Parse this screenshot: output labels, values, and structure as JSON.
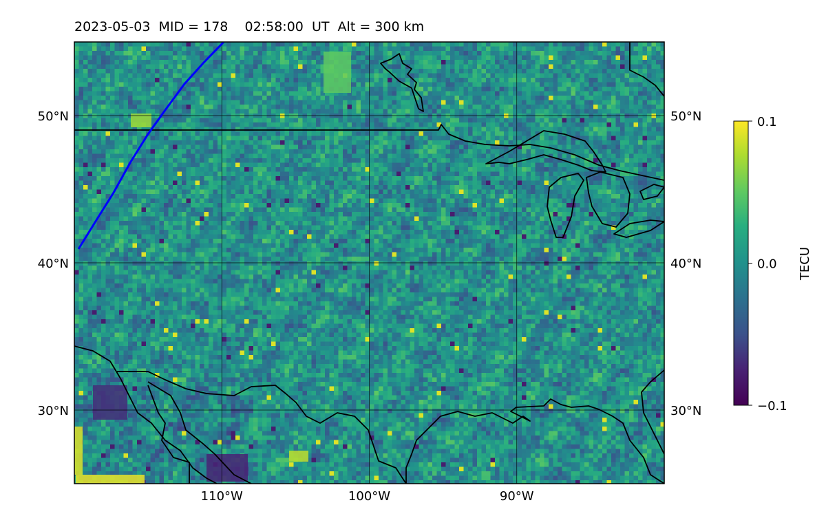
{
  "title": "2023-05-03  MID = 178    02:58:00  UT  Alt = 300 km",
  "map": {
    "lon_range": [
      -120,
      -80
    ],
    "lat_range": [
      25,
      55
    ],
    "lon_ticks": [
      {
        "value": -110,
        "label": "110°W"
      },
      {
        "value": -100,
        "label": "100°W"
      },
      {
        "value": -90,
        "label": "90°W"
      }
    ],
    "lat_ticks": [
      {
        "value": 30,
        "label": "30°N"
      },
      {
        "value": 40,
        "label": "40°N"
      },
      {
        "value": 50,
        "label": "50°N"
      }
    ],
    "track_color": "#0000ff",
    "coast_color": "#000000",
    "grid": true
  },
  "colorbar": {
    "label": "TECU",
    "min": -0.1,
    "max": 0.1,
    "colormap": "viridis",
    "ticks": [
      {
        "value": 0.1,
        "label": "0.1"
      },
      {
        "value": 0.0,
        "label": "0.0"
      },
      {
        "value": -0.1,
        "label": "−0.1"
      }
    ]
  }
}
